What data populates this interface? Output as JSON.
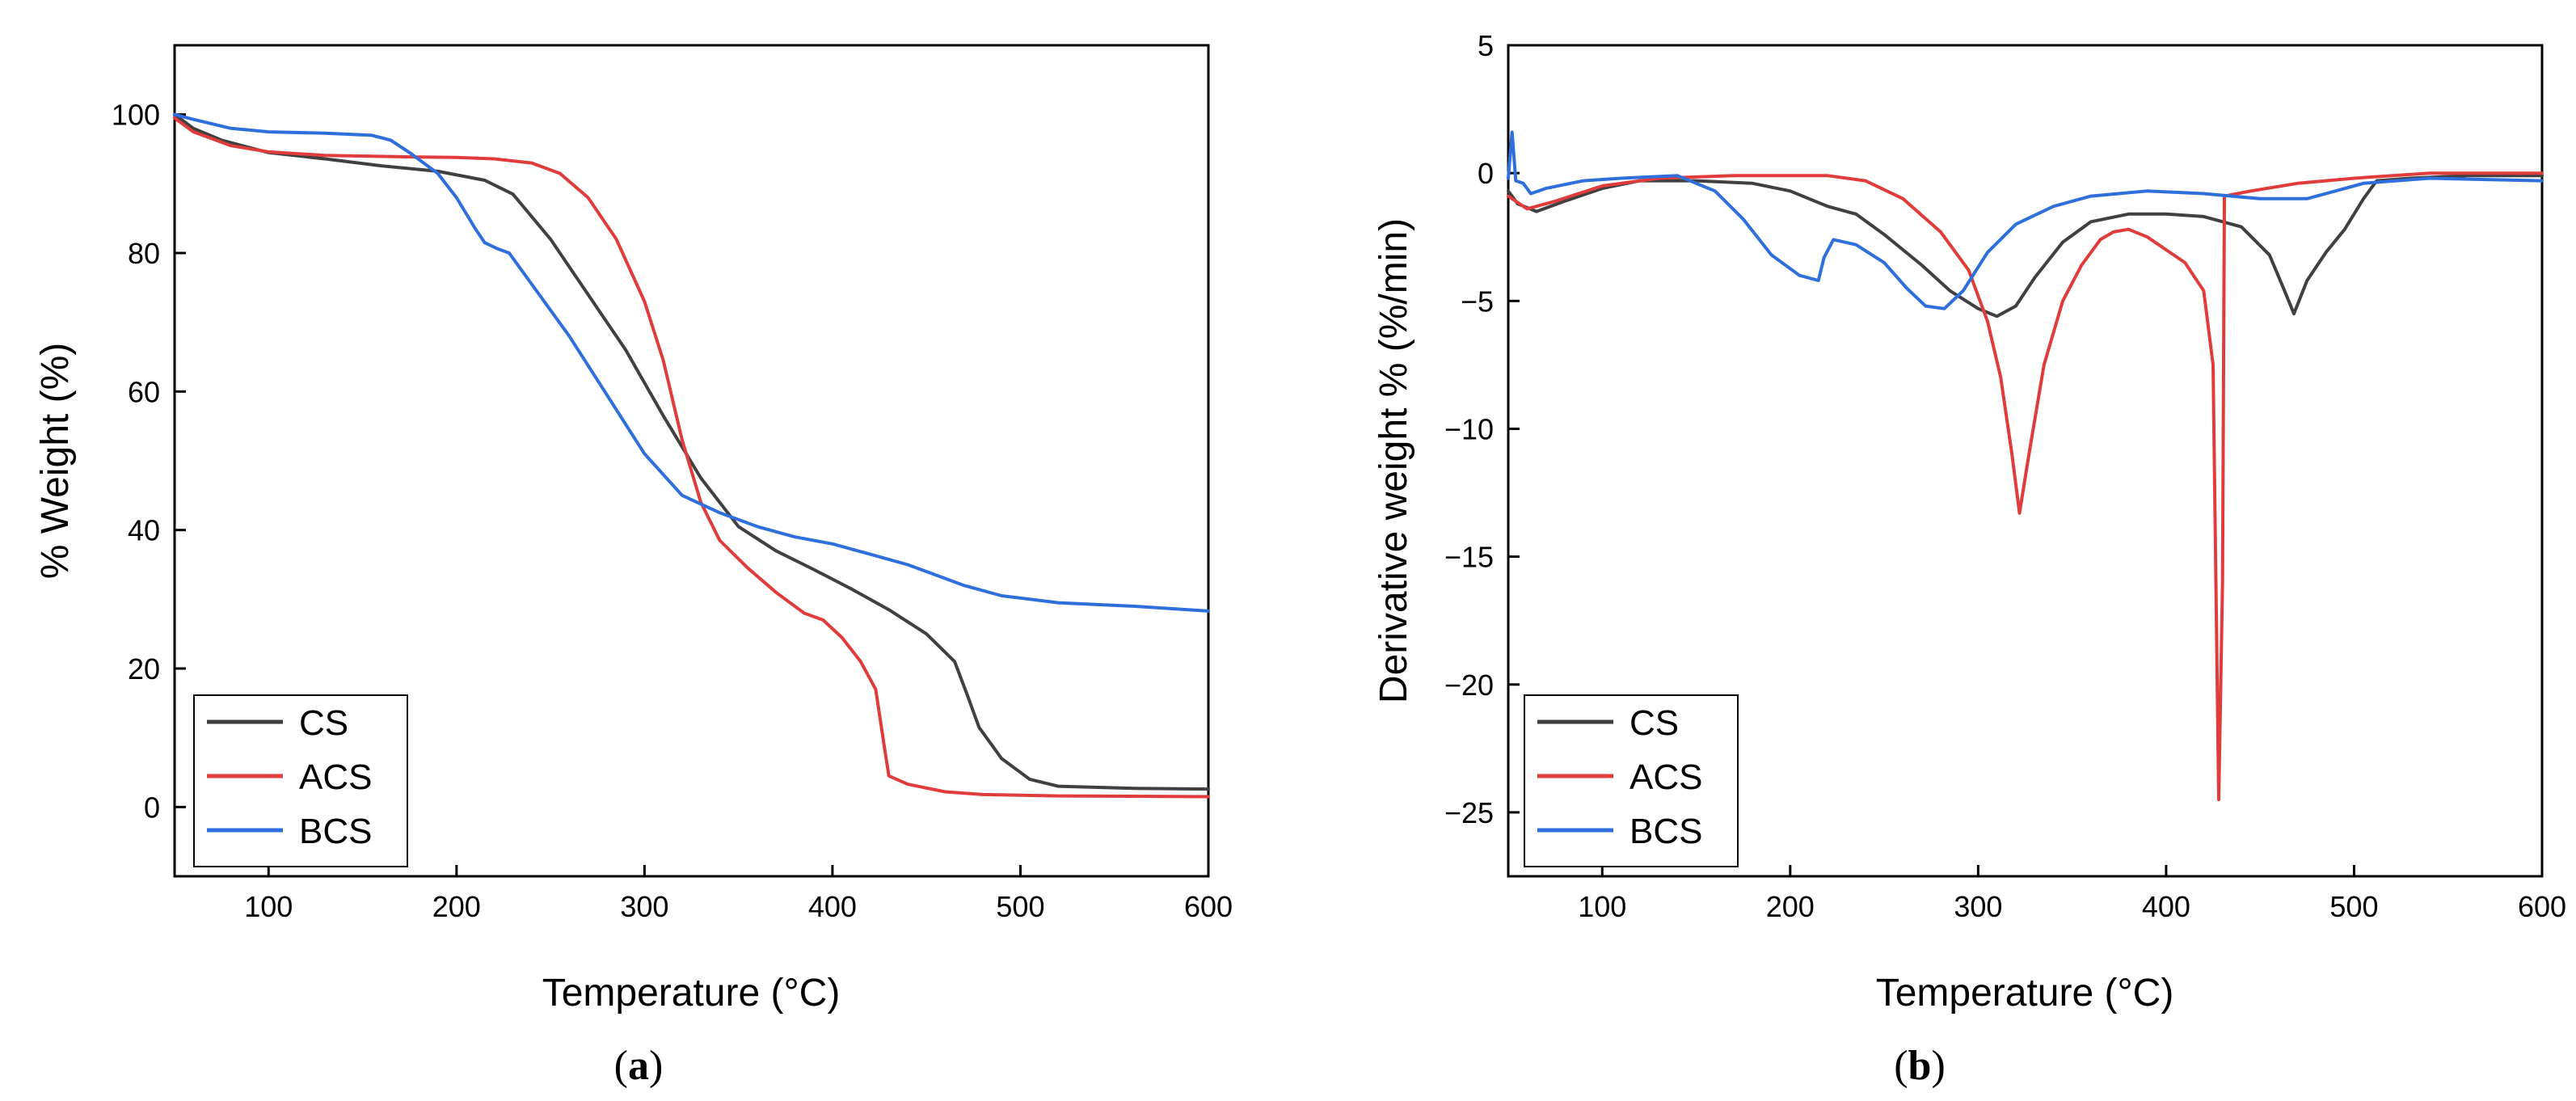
{
  "chart_data": [
    {
      "type": "line",
      "panel": "a",
      "xlabel": "Temperature (°C)",
      "ylabel": "% Weight  (%)",
      "xlim": [
        50,
        600
      ],
      "ylim": [
        -10,
        110
      ],
      "xticks": [
        100,
        200,
        300,
        400,
        500,
        600
      ],
      "yticks": [
        0,
        20,
        40,
        60,
        80,
        100
      ],
      "legend": {
        "position": "bottom-left",
        "entries": [
          "CS",
          "ACS",
          "BCS"
        ]
      },
      "series": [
        {
          "name": "CS",
          "color": "#404040",
          "points": [
            [
              50,
              100
            ],
            [
              60,
              98
            ],
            [
              75,
              96.3
            ],
            [
              100,
              94.5
            ],
            [
              130,
              93.6
            ],
            [
              160,
              92.6
            ],
            [
              190,
              91.8
            ],
            [
              215,
              90.5
            ],
            [
              230,
              88.5
            ],
            [
              250,
              82
            ],
            [
              270,
              74
            ],
            [
              290,
              66
            ],
            [
              310,
              56.5
            ],
            [
              330,
              47.5
            ],
            [
              350,
              40.5
            ],
            [
              370,
              37
            ],
            [
              390,
              34.3
            ],
            [
              410,
              31.5
            ],
            [
              430,
              28.5
            ],
            [
              450,
              25
            ],
            [
              465,
              21
            ],
            [
              472,
              16
            ],
            [
              478,
              11.5
            ],
            [
              490,
              7
            ],
            [
              505,
              4
            ],
            [
              520,
              3
            ],
            [
              560,
              2.7
            ],
            [
              600,
              2.6
            ]
          ]
        },
        {
          "name": "ACS",
          "color": "#e03c3c",
          "points": [
            [
              50,
              99.5
            ],
            [
              60,
              97.5
            ],
            [
              80,
              95.5
            ],
            [
              100,
              94.6
            ],
            [
              130,
              94.1
            ],
            [
              170,
              93.9
            ],
            [
              200,
              93.8
            ],
            [
              220,
              93.6
            ],
            [
              240,
              93
            ],
            [
              255,
              91.5
            ],
            [
              270,
              88
            ],
            [
              285,
              82
            ],
            [
              300,
              73
            ],
            [
              310,
              64.5
            ],
            [
              320,
              53
            ],
            [
              330,
              44
            ],
            [
              340,
              38.5
            ],
            [
              355,
              34.5
            ],
            [
              370,
              31
            ],
            [
              385,
              28
            ],
            [
              395,
              27
            ],
            [
              405,
              24.5
            ],
            [
              415,
              21
            ],
            [
              423,
              17
            ],
            [
              428,
              8
            ],
            [
              430,
              4.5
            ],
            [
              440,
              3.3
            ],
            [
              460,
              2.2
            ],
            [
              480,
              1.8
            ],
            [
              520,
              1.6
            ],
            [
              600,
              1.5
            ]
          ]
        },
        {
          "name": "BCS",
          "color": "#2f6fdc",
          "points": [
            [
              50,
              100
            ],
            [
              60,
              99.3
            ],
            [
              80,
              98
            ],
            [
              100,
              97.5
            ],
            [
              130,
              97.3
            ],
            [
              155,
              97
            ],
            [
              165,
              96.3
            ],
            [
              175,
              94.5
            ],
            [
              190,
              91.5
            ],
            [
              200,
              88
            ],
            [
              210,
              83.5
            ],
            [
              215,
              81.5
            ],
            [
              222,
              80.6
            ],
            [
              228,
              80
            ],
            [
              240,
              75.5
            ],
            [
              260,
              68
            ],
            [
              280,
              59.5
            ],
            [
              300,
              51
            ],
            [
              320,
              45
            ],
            [
              340,
              42.5
            ],
            [
              360,
              40.5
            ],
            [
              380,
              39
            ],
            [
              400,
              38
            ],
            [
              420,
              36.5
            ],
            [
              440,
              35
            ],
            [
              460,
              33
            ],
            [
              470,
              32
            ],
            [
              490,
              30.5
            ],
            [
              520,
              29.5
            ],
            [
              560,
              29
            ],
            [
              600,
              28.3
            ]
          ]
        }
      ]
    },
    {
      "type": "line",
      "panel": "b",
      "xlabel": "Temperature (°C)",
      "ylabel": "Derivative weight % (%/min)",
      "xlim": [
        50,
        600
      ],
      "ylim": [
        -27.5,
        5
      ],
      "xticks": [
        100,
        200,
        300,
        400,
        500,
        600
      ],
      "yticks": [
        5,
        0,
        -5,
        -10,
        -15,
        -20,
        -25
      ],
      "ytick_labels": [
        "5",
        "0",
        "−5",
        "−10",
        "−15",
        "−20",
        "−25"
      ],
      "legend": {
        "position": "bottom-left",
        "entries": [
          "CS",
          "ACS",
          "BCS"
        ]
      },
      "series": [
        {
          "name": "CS",
          "color": "#404040",
          "points": [
            [
              50,
              -0.7
            ],
            [
              55,
              -1.2
            ],
            [
              65,
              -1.5
            ],
            [
              80,
              -1.1
            ],
            [
              100,
              -0.6
            ],
            [
              120,
              -0.3
            ],
            [
              150,
              -0.3
            ],
            [
              180,
              -0.4
            ],
            [
              200,
              -0.7
            ],
            [
              220,
              -1.3
            ],
            [
              235,
              -1.6
            ],
            [
              250,
              -2.4
            ],
            [
              270,
              -3.6
            ],
            [
              285,
              -4.6
            ],
            [
              300,
              -5.3
            ],
            [
              310,
              -5.6
            ],
            [
              320,
              -5.2
            ],
            [
              330,
              -4.1
            ],
            [
              345,
              -2.7
            ],
            [
              360,
              -1.9
            ],
            [
              380,
              -1.6
            ],
            [
              400,
              -1.6
            ],
            [
              420,
              -1.7
            ],
            [
              440,
              -2.1
            ],
            [
              455,
              -3.2
            ],
            [
              463,
              -4.6
            ],
            [
              468,
              -5.5
            ],
            [
              475,
              -4.2
            ],
            [
              485,
              -3.1
            ],
            [
              495,
              -2.2
            ],
            [
              505,
              -1.0
            ],
            [
              512,
              -0.3
            ],
            [
              530,
              -0.2
            ],
            [
              560,
              -0.1
            ],
            [
              600,
              -0.1
            ]
          ]
        },
        {
          "name": "ACS",
          "color": "#e03c3c",
          "points": [
            [
              50,
              -0.9
            ],
            [
              60,
              -1.4
            ],
            [
              75,
              -1.1
            ],
            [
              100,
              -0.5
            ],
            [
              130,
              -0.2
            ],
            [
              170,
              -0.1
            ],
            [
              220,
              -0.1
            ],
            [
              240,
              -0.3
            ],
            [
              260,
              -1.0
            ],
            [
              280,
              -2.3
            ],
            [
              295,
              -3.8
            ],
            [
              305,
              -5.8
            ],
            [
              312,
              -8.0
            ],
            [
              318,
              -11.0
            ],
            [
              322,
              -13.3
            ],
            [
              327,
              -11.0
            ],
            [
              335,
              -7.5
            ],
            [
              345,
              -5.0
            ],
            [
              355,
              -3.6
            ],
            [
              365,
              -2.6
            ],
            [
              372,
              -2.3
            ],
            [
              380,
              -2.2
            ],
            [
              390,
              -2.5
            ],
            [
              400,
              -3.0
            ],
            [
              410,
              -3.5
            ],
            [
              420,
              -4.6
            ],
            [
              425,
              -7.5
            ],
            [
              428,
              -24.5
            ],
            [
              430,
              -16.0
            ],
            [
              431,
              -0.9
            ],
            [
              445,
              -0.7
            ],
            [
              470,
              -0.4
            ],
            [
              500,
              -0.2
            ],
            [
              540,
              0.0
            ],
            [
              600,
              0.0
            ]
          ]
        },
        {
          "name": "BCS",
          "color": "#2f6fdc",
          "points": [
            [
              50,
              -0.2
            ],
            [
              52,
              1.6
            ],
            [
              54,
              -0.3
            ],
            [
              58,
              -0.4
            ],
            [
              62,
              -0.8
            ],
            [
              70,
              -0.6
            ],
            [
              90,
              -0.3
            ],
            [
              110,
              -0.2
            ],
            [
              140,
              -0.1
            ],
            [
              160,
              -0.7
            ],
            [
              175,
              -1.8
            ],
            [
              190,
              -3.2
            ],
            [
              205,
              -4.0
            ],
            [
              215,
              -4.2
            ],
            [
              218,
              -3.3
            ],
            [
              223,
              -2.6
            ],
            [
              235,
              -2.8
            ],
            [
              250,
              -3.5
            ],
            [
              262,
              -4.5
            ],
            [
              272,
              -5.2
            ],
            [
              282,
              -5.3
            ],
            [
              292,
              -4.6
            ],
            [
              305,
              -3.1
            ],
            [
              320,
              -2.0
            ],
            [
              340,
              -1.3
            ],
            [
              360,
              -0.9
            ],
            [
              390,
              -0.7
            ],
            [
              420,
              -0.8
            ],
            [
              450,
              -1.0
            ],
            [
              475,
              -1.0
            ],
            [
              490,
              -0.7
            ],
            [
              505,
              -0.4
            ],
            [
              540,
              -0.2
            ],
            [
              600,
              -0.3
            ]
          ]
        }
      ]
    }
  ],
  "panel_labels": {
    "a": {
      "open": "(",
      "letter": "a",
      "close": ")"
    },
    "b": {
      "open": "(",
      "letter": "b",
      "close": ")"
    }
  },
  "colors": {
    "CS": "#404040",
    "ACS": "#e03c3c",
    "BCS": "#2f6fdc"
  }
}
